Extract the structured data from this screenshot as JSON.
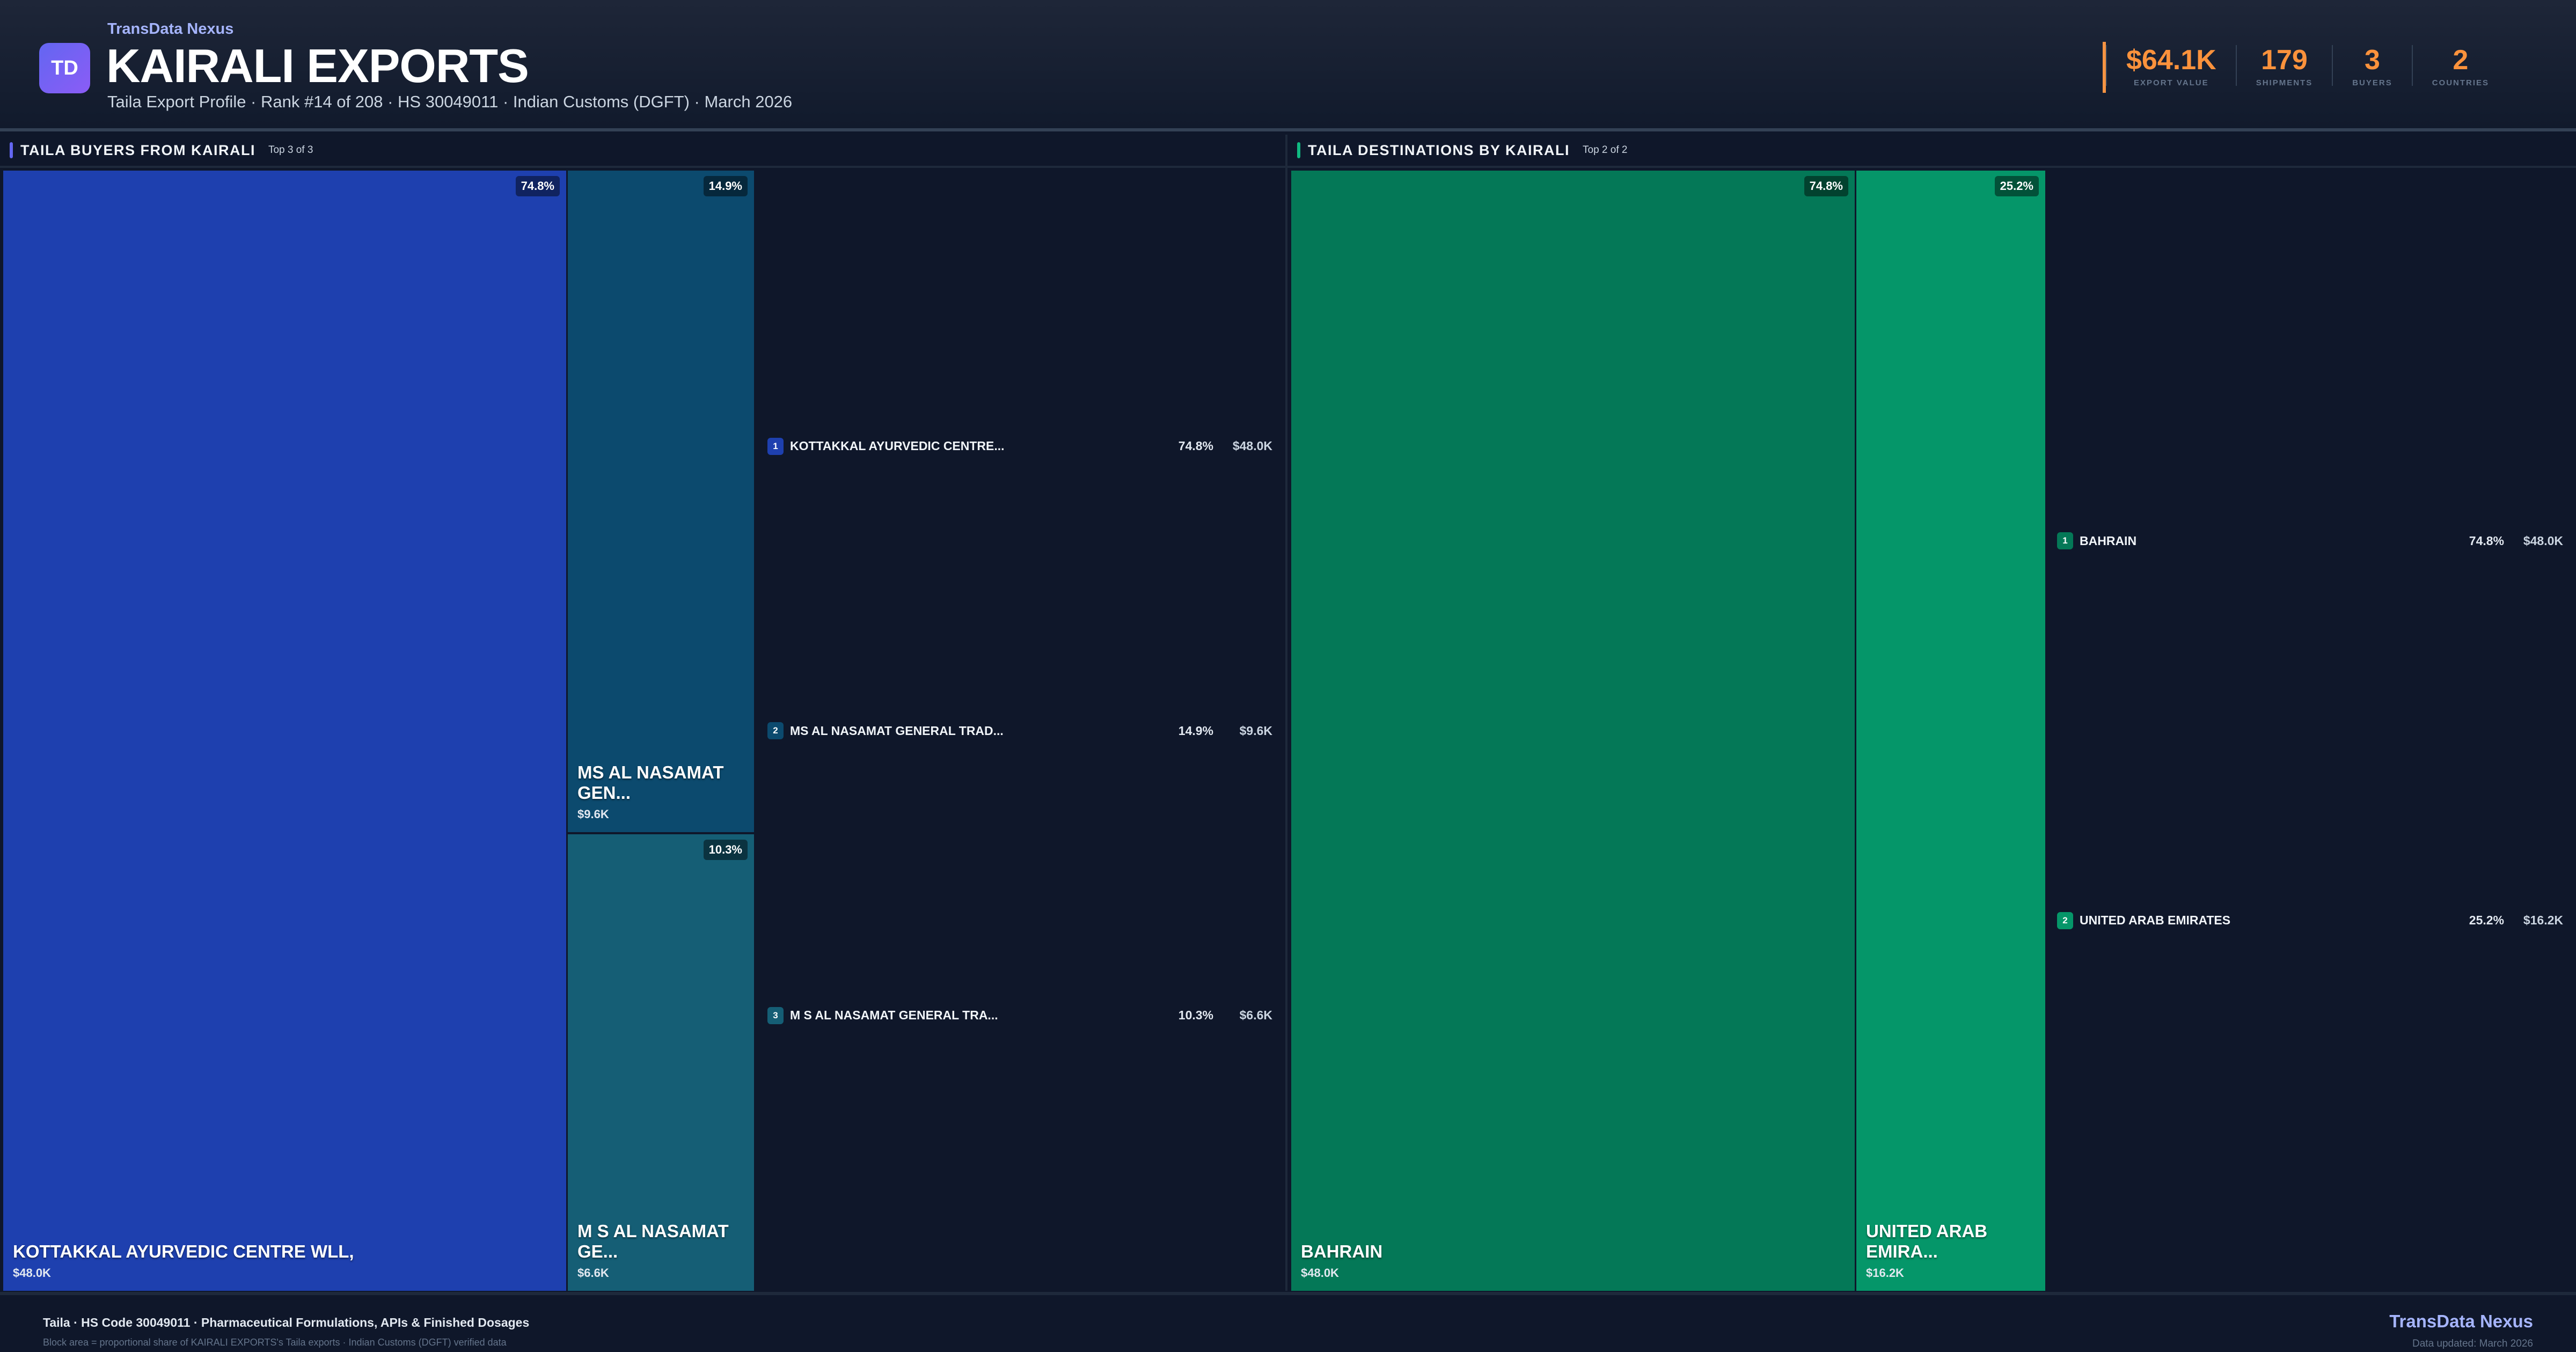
{
  "header": {
    "logo_text": "TD",
    "brand": "TransData Nexus",
    "title": "KAIRALI EXPORTS",
    "subtitle": "Taila Export Profile · Rank #14 of 208 · HS 30049011 · Indian Customs (DGFT) · March 2026",
    "accent_color": "#fb923c",
    "stats": [
      {
        "value": "$64.1K",
        "label": "EXPORT VALUE"
      },
      {
        "value": "179",
        "label": "SHIPMENTS"
      },
      {
        "value": "3",
        "label": "BUYERS"
      },
      {
        "value": "2",
        "label": "COUNTRIES"
      }
    ]
  },
  "buyers": {
    "title": "TAILA BUYERS FROM KAIRALI",
    "count": "Top 3 of 3",
    "accent_color": "#6366f1",
    "blocks": [
      {
        "name": "KOTTAKKAL AYURVEDIC CENTRE WLL,",
        "value": "$48.0K",
        "pct": "74.8%",
        "color": "#1e40af"
      },
      {
        "name": "MS AL NASAMAT GEN...",
        "value": "$9.6K",
        "pct": "14.9%",
        "color": "#0c4a6e"
      },
      {
        "name": "M S AL NASAMAT GE...",
        "value": "$6.6K",
        "pct": "10.3%",
        "color": "#155e75"
      }
    ],
    "list": [
      {
        "rank": "1",
        "name": "KOTTAKKAL AYURVEDIC CENTRE...",
        "pct": "74.8%",
        "value": "$48.0K"
      },
      {
        "rank": "2",
        "name": "MS AL NASAMAT GENERAL TRAD...",
        "pct": "14.9%",
        "value": "$9.6K"
      },
      {
        "rank": "3",
        "name": "M S AL NASAMAT GENERAL TRA...",
        "pct": "10.3%",
        "value": "$6.6K"
      }
    ]
  },
  "destinations": {
    "title": "TAILA DESTINATIONS BY KAIRALI",
    "count": "Top 2 of 2",
    "accent_color": "#10b981",
    "blocks": [
      {
        "name": "BAHRAIN",
        "value": "$48.0K",
        "pct": "74.8%",
        "color": "#047857"
      },
      {
        "name": "UNITED ARAB EMIRA...",
        "value": "$16.2K",
        "pct": "25.2%",
        "color": "#059669"
      }
    ],
    "list": [
      {
        "rank": "1",
        "name": "BAHRAIN",
        "pct": "74.8%",
        "value": "$48.0K"
      },
      {
        "rank": "2",
        "name": "UNITED ARAB EMIRATES",
        "pct": "25.2%",
        "value": "$16.2K"
      }
    ]
  },
  "footer": {
    "line1": "Taila · HS Code 30049011 · Pharmaceutical Formulations, APIs & Finished Dosages",
    "line2": "Block area = proportional share of KAIRALI EXPORTS's Taila exports · Indian Customs (DGFT) verified data",
    "brand": "TransData Nexus",
    "updated": "Data updated: March 2026"
  }
}
